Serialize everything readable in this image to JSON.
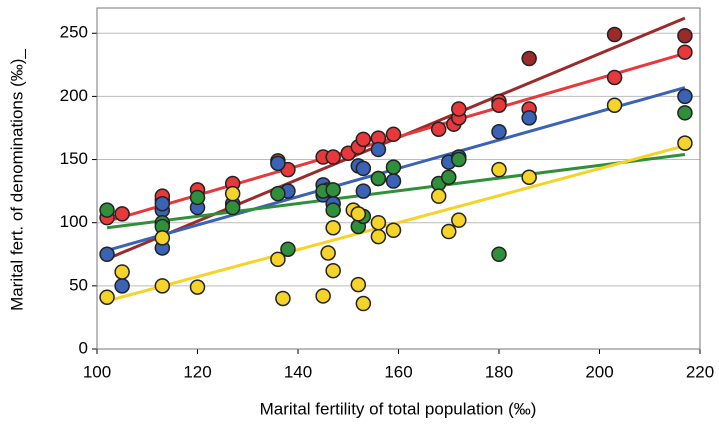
{
  "chart_data": {
    "type": "scatter",
    "x_label": "Marital fertility of total population (‰)",
    "y_label": "Marital fert. of denominations (‰)_",
    "xlim": [
      100,
      220
    ],
    "ylim": [
      0,
      270
    ],
    "xticks": [
      100,
      120,
      140,
      160,
      180,
      200,
      220
    ],
    "yticks": [
      0,
      50,
      100,
      150,
      200,
      250
    ],
    "grid": true,
    "series": [
      {
        "color": "#9b2b2b",
        "x": [
          186,
          203,
          217
        ],
        "values": [
          230,
          249,
          248
        ],
        "trend": {
          "x": [
            103,
            217
          ],
          "values": [
            73,
            262
          ]
        }
      },
      {
        "color": "#e8383b",
        "x": [
          102,
          105,
          113,
          113,
          120,
          127,
          136,
          138,
          145,
          147,
          150,
          152,
          153,
          156,
          159,
          168,
          171,
          172,
          172,
          180,
          180,
          186,
          203,
          217
        ],
        "values": [
          104,
          107,
          118,
          121,
          126,
          131,
          149,
          142,
          152,
          152,
          155,
          160,
          166,
          167,
          170,
          174,
          178,
          183,
          190,
          196,
          193,
          190,
          215,
          235
        ],
        "trend": {
          "x": [
            102,
            217
          ],
          "values": [
            101,
            234
          ]
        }
      },
      {
        "color": "#3a62b5",
        "x": [
          102,
          105,
          113,
          113,
          113,
          120,
          127,
          136,
          138,
          145,
          145,
          146,
          147,
          152,
          153,
          153,
          156,
          156,
          159,
          170,
          172,
          180,
          186,
          217
        ],
        "values": [
          75,
          50,
          80,
          110,
          115,
          112,
          115,
          147,
          125,
          122,
          130,
          126,
          115,
          145,
          143,
          125,
          158,
          135,
          133,
          148,
          152,
          172,
          183,
          200
        ],
        "trend": {
          "x": [
            102,
            217
          ],
          "values": [
            78,
            207
          ]
        }
      },
      {
        "color": "#2f8f3a",
        "x": [
          102,
          113,
          113,
          120,
          127,
          136,
          138,
          145,
          147,
          147,
          152,
          153,
          156,
          159,
          168,
          170,
          172,
          180,
          217
        ],
        "values": [
          110,
          100,
          97,
          120,
          112,
          123,
          79,
          125,
          126,
          110,
          97,
          105,
          135,
          144,
          131,
          136,
          150,
          75,
          187
        ],
        "trend": {
          "x": [
            102,
            217
          ],
          "values": [
            96,
            154
          ]
        }
      },
      {
        "color": "#f5d328",
        "x": [
          102,
          105,
          113,
          113,
          120,
          127,
          137,
          136,
          145,
          146,
          147,
          147,
          151,
          152,
          152,
          153,
          156,
          156,
          159,
          168,
          170,
          172,
          180,
          186,
          203,
          217
        ],
        "values": [
          41,
          61,
          50,
          88,
          49,
          123,
          40,
          71,
          42,
          76,
          96,
          62,
          110,
          107,
          51,
          36,
          89,
          100,
          94,
          121,
          93,
          102,
          142,
          136,
          193,
          163
        ],
        "trend": {
          "x": [
            102,
            217
          ],
          "values": [
            38,
            161
          ]
        }
      }
    ]
  }
}
